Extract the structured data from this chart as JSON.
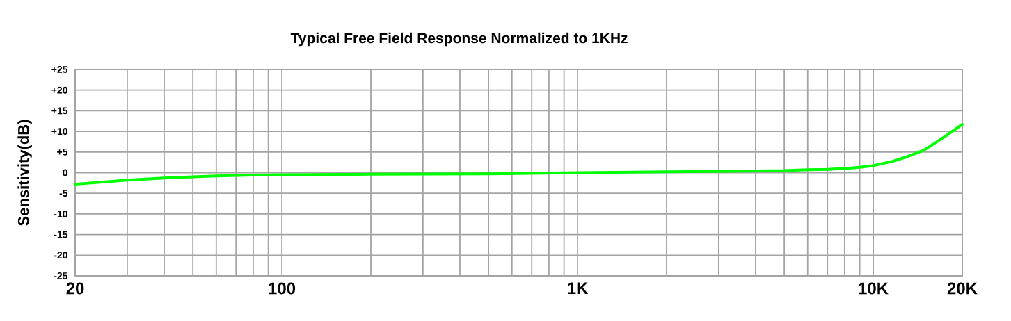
{
  "chart_data": {
    "type": "line",
    "title": "Typical Free Field Response Normalized to 1KHz",
    "ylabel": "Sensitivity(dB)",
    "log": "x",
    "x": [
      20,
      30,
      40,
      50,
      60,
      80,
      100,
      200,
      500,
      1000,
      2000,
      3000,
      5000,
      6000,
      7000,
      8000,
      9000,
      10000,
      11700,
      12800,
      14800,
      17100,
      20000
    ],
    "series": [
      {
        "color": "#00ff00",
        "values": [
          -2.8,
          -1.8,
          -1.3,
          -1.0,
          -0.8,
          -0.6,
          -0.5,
          -0.4,
          -0.3,
          0,
          0.2,
          0.3,
          0.5,
          0.7,
          0.8,
          1.0,
          1.3,
          1.7,
          2.8,
          3.7,
          5.4,
          8.3,
          11.7
        ]
      }
    ],
    "xlim": [
      20,
      20000
    ],
    "ylim": [
      -25,
      25
    ],
    "xticks": [
      20,
      {
        "value": 30,
        "label": null
      },
      {
        "value": 40,
        "label": null
      },
      {
        "value": 50,
        "label": null
      },
      {
        "value": 60,
        "label": null
      },
      {
        "value": 70,
        "label": null
      },
      {
        "value": 80,
        "label": null
      },
      {
        "value": 90,
        "label": null
      },
      100,
      {
        "value": 200,
        "label": null
      },
      {
        "value": 300,
        "label": null
      },
      {
        "value": 400,
        "label": null
      },
      {
        "value": 500,
        "label": null
      },
      {
        "value": 600,
        "label": null
      },
      {
        "value": 700,
        "label": null
      },
      {
        "value": 800,
        "label": null
      },
      {
        "value": 900,
        "label": null
      },
      {
        "value": 1000,
        "label": "1K"
      },
      {
        "value": 2000,
        "label": null
      },
      {
        "value": 3000,
        "label": null
      },
      {
        "value": 4000,
        "label": null
      },
      {
        "value": 5000,
        "label": null
      },
      {
        "value": 6000,
        "label": null
      },
      {
        "value": 7000,
        "label": null
      },
      {
        "value": 8000,
        "label": null
      },
      {
        "value": 9000,
        "label": null
      },
      {
        "value": 10000,
        "label": "10K"
      },
      {
        "value": 20000,
        "label": "20K"
      }
    ],
    "yticks": [
      -25,
      -20,
      -15,
      -10,
      -5,
      0,
      {
        "value": 5,
        "label": "+5"
      },
      {
        "value": 10,
        "label": "+10"
      },
      {
        "value": 15,
        "label": "+15"
      },
      {
        "value": 20,
        "label": "+20"
      },
      {
        "value": 25,
        "label": "+25"
      }
    ],
    "grid": true,
    "line_style": "solid"
  }
}
